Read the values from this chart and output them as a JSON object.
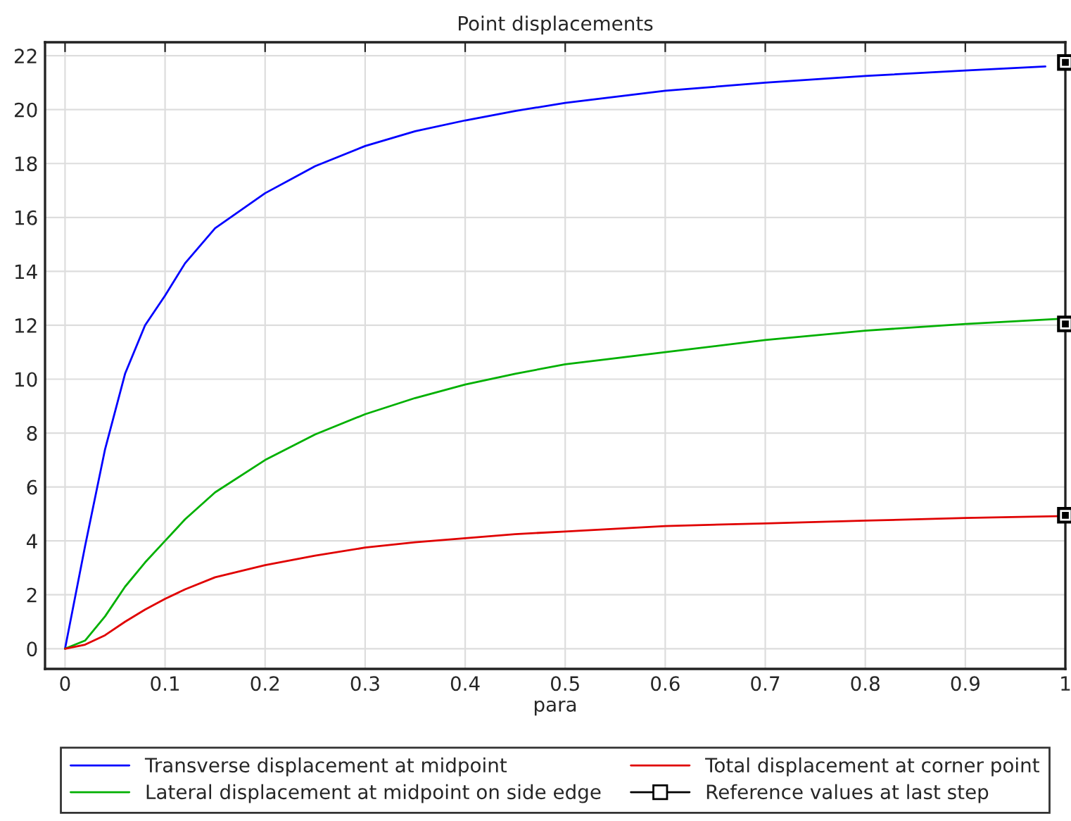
{
  "chart_data": {
    "type": "line",
    "title": "Point displacements",
    "xlabel": "para",
    "xlim": [
      -0.02,
      1.0
    ],
    "xticks": [
      0,
      0.1,
      0.2,
      0.3,
      0.4,
      0.5,
      0.6,
      0.7,
      0.8,
      0.9,
      1
    ],
    "ylim": [
      -0.75,
      22.5
    ],
    "yticks": [
      0,
      2,
      4,
      6,
      8,
      10,
      12,
      14,
      16,
      18,
      20,
      22
    ],
    "grid": true,
    "legend": "bottom",
    "series": [
      {
        "name": "Transverse displacement at midpoint",
        "color": "#0000ff",
        "x": [
          0,
          0.02,
          0.04,
          0.06,
          0.08,
          0.1,
          0.12,
          0.15,
          0.2,
          0.25,
          0.3,
          0.35,
          0.4,
          0.45,
          0.5,
          0.6,
          0.7,
          0.8,
          0.9,
          0.98
        ],
        "values": [
          0,
          3.8,
          7.4,
          10.2,
          12.0,
          13.1,
          14.3,
          15.6,
          16.9,
          17.9,
          18.65,
          19.2,
          19.6,
          19.95,
          20.25,
          20.7,
          21.0,
          21.25,
          21.45,
          21.6
        ]
      },
      {
        "name": "Lateral displacement at midpoint on side edge",
        "color": "#00b000",
        "x": [
          0,
          0.02,
          0.04,
          0.06,
          0.08,
          0.1,
          0.12,
          0.15,
          0.2,
          0.25,
          0.3,
          0.35,
          0.4,
          0.45,
          0.5,
          0.6,
          0.7,
          0.8,
          0.9,
          1.0
        ],
        "values": [
          0,
          0.3,
          1.2,
          2.3,
          3.2,
          4.0,
          4.8,
          5.8,
          7.0,
          7.95,
          8.7,
          9.3,
          9.8,
          10.2,
          10.55,
          11.0,
          11.45,
          11.8,
          12.05,
          12.25
        ]
      },
      {
        "name": "Total displacement at corner point",
        "color": "#e00000",
        "x": [
          0,
          0.02,
          0.04,
          0.06,
          0.08,
          0.1,
          0.12,
          0.15,
          0.2,
          0.25,
          0.3,
          0.35,
          0.4,
          0.45,
          0.5,
          0.6,
          0.7,
          0.8,
          0.9,
          1.0
        ],
        "values": [
          0,
          0.15,
          0.5,
          1.0,
          1.45,
          1.85,
          2.2,
          2.65,
          3.1,
          3.45,
          3.75,
          3.95,
          4.1,
          4.25,
          4.35,
          4.55,
          4.65,
          4.75,
          4.85,
          4.92
        ]
      },
      {
        "name": "Reference values at last step",
        "type": "scatter",
        "marker": "square",
        "color": "#000000",
        "x": [
          1,
          1,
          1
        ],
        "values": [
          21.75,
          12.05,
          4.95
        ]
      }
    ]
  }
}
